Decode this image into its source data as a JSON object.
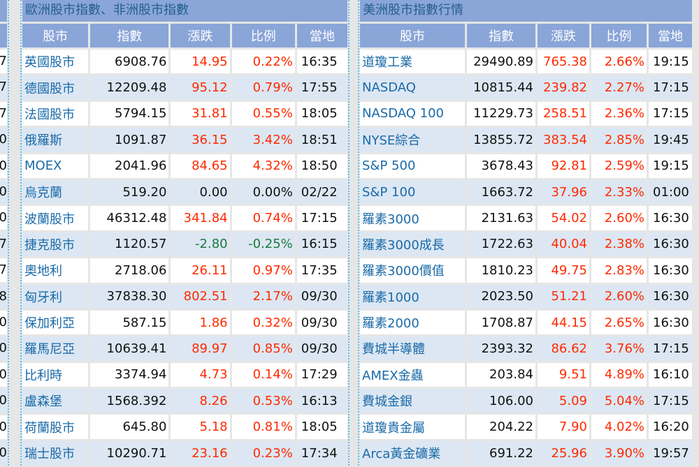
{
  "edge_digits": [
    "7",
    "7",
    "7",
    "0",
    "0",
    "0",
    "0",
    "7",
    "7",
    "8",
    "0",
    "0",
    "0",
    "0",
    "0",
    "0"
  ],
  "left": {
    "title": "歐洲股市指數、非洲股市指數",
    "headers": [
      "股市",
      "指數",
      "漲跌",
      "比例",
      "當地"
    ],
    "rows": [
      [
        "英國股市",
        "6908.76",
        "14.95",
        "0.22%",
        "16:35",
        "up"
      ],
      [
        "德國股市",
        "12209.48",
        "95.12",
        "0.79%",
        "17:55",
        "up"
      ],
      [
        "法國股市",
        "5794.15",
        "31.81",
        "0.55%",
        "18:05",
        "up"
      ],
      [
        "俄羅斯",
        "1091.87",
        "36.15",
        "3.42%",
        "18:51",
        "up"
      ],
      [
        "MOEX",
        "2041.96",
        "84.65",
        "4.32%",
        "18:50",
        "up"
      ],
      [
        "烏克蘭",
        "519.20",
        "0.00",
        "0.00%",
        "02/22",
        "flat"
      ],
      [
        "波蘭股市",
        "46312.48",
        "341.84",
        "0.74%",
        "17:15",
        "up"
      ],
      [
        "捷克股市",
        "1120.57",
        "-2.80",
        "-0.25%",
        "16:15",
        "down"
      ],
      [
        "奧地利",
        "2718.06",
        "26.11",
        "0.97%",
        "17:35",
        "up"
      ],
      [
        "匈牙利",
        "37838.30",
        "802.51",
        "2.17%",
        "09/30",
        "up"
      ],
      [
        "保加利亞",
        "587.15",
        "1.86",
        "0.32%",
        "09/30",
        "up"
      ],
      [
        "羅馬尼亞",
        "10639.41",
        "89.97",
        "0.85%",
        "09/30",
        "up"
      ],
      [
        "比利時",
        "3374.94",
        "4.73",
        "0.14%",
        "17:29",
        "up"
      ],
      [
        "盧森堡",
        "1568.392",
        "8.26",
        "0.53%",
        "16:13",
        "up"
      ],
      [
        "荷蘭股市",
        "645.80",
        "5.18",
        "0.81%",
        "18:05",
        "up"
      ],
      [
        "瑞士股市",
        "10290.71",
        "23.16",
        "0.23%",
        "17:34",
        "up"
      ]
    ]
  },
  "right": {
    "title": "美洲股市指數行情",
    "headers": [
      "股市",
      "指數",
      "漲跌",
      "比例",
      "當地"
    ],
    "rows": [
      [
        "道瓊工業",
        "29490.89",
        "765.38",
        "2.66%",
        "19:15",
        "up"
      ],
      [
        "NASDAQ",
        "10815.44",
        "239.82",
        "2.27%",
        "17:15",
        "up"
      ],
      [
        "NASDAQ 100",
        "11229.73",
        "258.51",
        "2.36%",
        "17:15",
        "up"
      ],
      [
        "NYSE綜合",
        "13855.72",
        "383.54",
        "2.85%",
        "19:45",
        "up"
      ],
      [
        "S&P 500",
        "3678.43",
        "92.81",
        "2.59%",
        "19:15",
        "up"
      ],
      [
        "S&P 100",
        "1663.72",
        "37.96",
        "2.33%",
        "01:00",
        "up"
      ],
      [
        "羅素3000",
        "2131.63",
        "54.02",
        "2.60%",
        "16:30",
        "up"
      ],
      [
        "羅素3000成長",
        "1722.63",
        "40.04",
        "2.38%",
        "16:30",
        "up"
      ],
      [
        "羅素3000價值",
        "1810.23",
        "49.75",
        "2.83%",
        "16:30",
        "up"
      ],
      [
        "羅素1000",
        "2023.50",
        "51.21",
        "2.60%",
        "16:30",
        "up"
      ],
      [
        "羅素2000",
        "1708.87",
        "44.15",
        "2.65%",
        "16:30",
        "up"
      ],
      [
        "費城半導體",
        "2393.32",
        "86.62",
        "3.76%",
        "17:15",
        "up"
      ],
      [
        "AMEX金蟲",
        "203.84",
        "9.51",
        "4.89%",
        "16:10",
        "up"
      ],
      [
        "費城金銀",
        "106.00",
        "5.09",
        "5.04%",
        "17:15",
        "up"
      ],
      [
        "道瓊貴金屬",
        "204.22",
        "7.90",
        "4.02%",
        "16:20",
        "up"
      ],
      [
        "Arca黃金礦業",
        "691.22",
        "25.96",
        "3.90%",
        "19:57",
        "up"
      ]
    ]
  }
}
